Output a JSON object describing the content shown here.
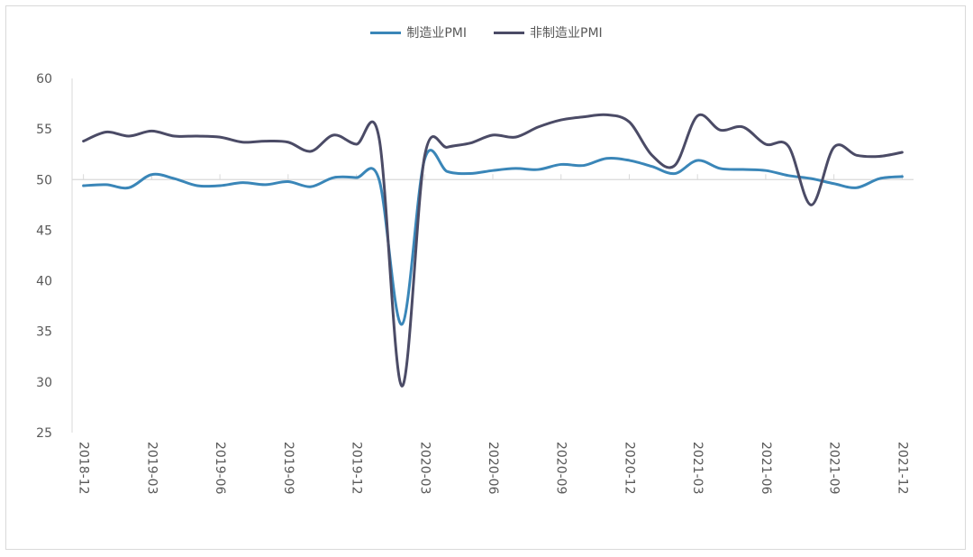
{
  "chart_data": {
    "type": "line",
    "title": "",
    "xlabel": "",
    "ylabel": "",
    "ylim": [
      25,
      60
    ],
    "yticks": [
      25,
      30,
      35,
      40,
      45,
      50,
      55,
      60
    ],
    "reference_line": 50,
    "legend_position": "top-center",
    "x": [
      "2018-12",
      "2019-01",
      "2019-02",
      "2019-03",
      "2019-04",
      "2019-05",
      "2019-06",
      "2019-07",
      "2019-08",
      "2019-09",
      "2019-10",
      "2019-11",
      "2019-12",
      "2020-01",
      "2020-02",
      "2020-03",
      "2020-04",
      "2020-05",
      "2020-06",
      "2020-07",
      "2020-08",
      "2020-09",
      "2020-10",
      "2020-11",
      "2020-12",
      "2021-01",
      "2021-02",
      "2021-03",
      "2021-04",
      "2021-05",
      "2021-06",
      "2021-07",
      "2021-08",
      "2021-09",
      "2021-10",
      "2021-11",
      "2021-12"
    ],
    "xtick_labels": [
      "2018-12",
      "2019-03",
      "2019-06",
      "2019-09",
      "2019-12",
      "2020-03",
      "2020-06",
      "2020-09",
      "2020-12",
      "2021-03",
      "2021-06",
      "2021-09",
      "2021-12"
    ],
    "series": [
      {
        "name": "制造业PMI",
        "color": "#3a86b8",
        "values": [
          49.4,
          49.5,
          49.2,
          50.5,
          50.1,
          49.4,
          49.4,
          49.7,
          49.5,
          49.8,
          49.3,
          50.2,
          50.2,
          50.0,
          35.7,
          52.0,
          50.8,
          50.6,
          50.9,
          51.1,
          51.0,
          51.5,
          51.4,
          52.1,
          51.9,
          51.3,
          50.6,
          51.9,
          51.1,
          51.0,
          50.9,
          50.4,
          50.1,
          49.6,
          49.2,
          50.1,
          50.3
        ]
      },
      {
        "name": "非制造业PMI",
        "color": "#4b4b66",
        "values": [
          53.8,
          54.7,
          54.3,
          54.8,
          54.3,
          54.3,
          54.2,
          53.7,
          53.8,
          53.7,
          52.8,
          54.4,
          53.5,
          54.1,
          29.6,
          52.3,
          53.2,
          53.6,
          54.4,
          54.2,
          55.2,
          55.9,
          56.2,
          56.4,
          55.7,
          52.4,
          51.4,
          56.3,
          54.9,
          55.2,
          53.5,
          53.3,
          47.5,
          53.2,
          52.4,
          52.3,
          52.7
        ]
      }
    ]
  }
}
